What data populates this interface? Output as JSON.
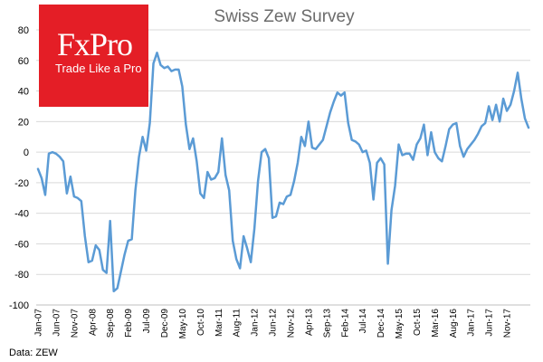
{
  "logo": {
    "brand": "FxPro",
    "tagline": "Trade Like a Pro"
  },
  "source": "Data: ZEW",
  "colors": {
    "line": "#5b9bd5",
    "logo_bg": "#e41e26",
    "grid": "#d9d9d9",
    "title": "#6b6b6b"
  },
  "chart_data": {
    "type": "line",
    "title": "Swiss Zew Survey",
    "xlabel": "",
    "ylabel": "",
    "ylim": [
      -100,
      80
    ],
    "yticks": [
      80,
      60,
      40,
      20,
      0,
      -20,
      -40,
      -60,
      -80,
      -100
    ],
    "x_tick_labels": [
      "Jan-07",
      "Jun-07",
      "Nov-07",
      "Apr-08",
      "Sep-08",
      "Feb-09",
      "Jul-09",
      "Dec-09",
      "May-10",
      "Oct-10",
      "Mar-11",
      "Aug-11",
      "Jan-12",
      "Jun-12",
      "Nov-12",
      "Apr-13",
      "Sep-13",
      "Feb-14",
      "Jul-14",
      "Dec-14",
      "May-15",
      "Oct-15",
      "Mar-16",
      "Aug-16",
      "Jan-17",
      "Jun-17",
      "Nov-17"
    ],
    "x_tick_step_months": 5,
    "start": "Jan-07",
    "series": [
      {
        "name": "Swiss Zew Survey",
        "values": [
          -11,
          -17,
          -28,
          -1,
          0,
          -1,
          -3,
          -6,
          -27,
          -16,
          -29,
          -30,
          -32,
          -55,
          -72,
          -71,
          -61,
          -64,
          -77,
          -79,
          -45,
          -91,
          -89,
          -78,
          -67,
          -58,
          -57,
          -25,
          -3,
          10,
          1,
          19,
          58,
          65,
          57,
          55,
          56,
          53,
          54,
          54,
          43,
          18,
          2,
          9,
          -6,
          -27,
          -30,
          -13,
          -18,
          -17,
          -13,
          9,
          -15,
          -25,
          -58,
          -70,
          -76,
          -55,
          -63,
          -72,
          -50,
          -19,
          0,
          2,
          -4,
          -43,
          -42,
          -33,
          -34,
          -29,
          -28,
          -19,
          -7,
          10,
          4,
          20,
          3,
          2,
          5,
          8,
          17,
          26,
          33,
          39,
          37,
          39,
          19,
          8,
          7,
          5,
          0,
          1,
          -7,
          -31,
          -7,
          -4,
          -8,
          -73,
          -38,
          -22,
          5,
          -2,
          -1,
          -1,
          -5,
          5,
          9,
          18,
          -2,
          13,
          0,
          -4,
          -6,
          4,
          15,
          18,
          19,
          4,
          -3,
          2,
          5,
          8,
          12,
          17,
          19,
          30,
          21,
          31,
          20,
          35,
          27,
          31,
          40,
          52,
          35,
          22,
          16
        ]
      }
    ]
  }
}
